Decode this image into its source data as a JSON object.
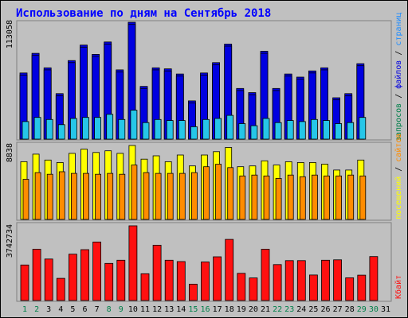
{
  "title": "Использование по дням на Сентябрь 2018",
  "colors": {
    "frame_bg": "#ffffff",
    "panel_bg": "#c0c0c0",
    "title": "#0000ff",
    "hits": "#0000e0",
    "files": "#26c6e8",
    "pages": "#1e8cff",
    "sites": "#ff8c00",
    "visits": "#ffff00",
    "kbytes": "#ff1010",
    "weekday": "#000000",
    "weekend": "#00804a"
  },
  "legend_top": [
    {
      "text": "запросов",
      "color": "#00804a"
    },
    {
      "text": " / ",
      "color": "#000000"
    },
    {
      "text": "файлов",
      "color": "#0000e0"
    },
    {
      "text": " / ",
      "color": "#000000"
    },
    {
      "text": "страниц",
      "color": "#1e8cff"
    }
  ],
  "legend_mid": [
    {
      "text": "посещений",
      "color": "#ffff00"
    },
    {
      "text": " / ",
      "color": "#000000"
    },
    {
      "text": "сайтов",
      "color": "#ff8c00"
    }
  ],
  "legend_bottom": [
    {
      "text": "Кбайт",
      "color": "#ff1010"
    }
  ],
  "chart_data": [
    {
      "type": "bar",
      "panel": "top",
      "ymax_label": "113058",
      "ylim": [
        0,
        113058
      ],
      "categories": [
        "1",
        "2",
        "3",
        "4",
        "5",
        "6",
        "7",
        "8",
        "9",
        "10",
        "11",
        "12",
        "13",
        "14",
        "15",
        "16",
        "17",
        "18",
        "19",
        "20",
        "21",
        "22",
        "23",
        "24",
        "25",
        "26",
        "27",
        "28",
        "29",
        "30",
        "31"
      ],
      "series": [
        {
          "name": "запросов",
          "values": [
            64000,
            83000,
            69000,
            44000,
            76000,
            91000,
            82000,
            94000,
            67000,
            113058,
            51000,
            69000,
            68000,
            63000,
            37000,
            64000,
            74000,
            92000,
            49000,
            45000,
            85000,
            49000,
            63000,
            60000,
            66000,
            69000,
            40000,
            44000,
            73000,
            0,
            0
          ]
        },
        {
          "name": "файлов",
          "values": [
            62000,
            81000,
            67000,
            42000,
            74000,
            89000,
            80000,
            92000,
            65000,
            111000,
            49000,
            67000,
            66000,
            61000,
            35000,
            62000,
            72000,
            90000,
            47000,
            43000,
            83000,
            47000,
            61000,
            58000,
            64000,
            67000,
            38000,
            42000,
            71000,
            0,
            0
          ]
        },
        {
          "name": "страниц",
          "values": [
            17000,
            21000,
            19000,
            14000,
            20000,
            21000,
            21000,
            24000,
            19000,
            28000,
            16000,
            19000,
            18000,
            18000,
            12000,
            19000,
            20000,
            23000,
            15000,
            13000,
            20000,
            16000,
            18000,
            17000,
            19000,
            18000,
            15000,
            16000,
            21000,
            0,
            0
          ]
        }
      ]
    },
    {
      "type": "bar",
      "panel": "middle",
      "ymax_label": "8838",
      "ylim": [
        0,
        8838
      ],
      "categories": [
        "1",
        "2",
        "3",
        "4",
        "5",
        "6",
        "7",
        "8",
        "9",
        "10",
        "11",
        "12",
        "13",
        "14",
        "15",
        "16",
        "17",
        "18",
        "19",
        "20",
        "21",
        "22",
        "23",
        "24",
        "25",
        "26",
        "27",
        "28",
        "29",
        "30",
        "31"
      ],
      "series": [
        {
          "name": "посещений",
          "values": [
            6900,
            7800,
            7100,
            6800,
            7900,
            8400,
            8000,
            8200,
            7900,
            8838,
            7200,
            7600,
            6900,
            7700,
            6400,
            7700,
            8100,
            8600,
            6300,
            6400,
            7000,
            6500,
            6900,
            6800,
            6800,
            6600,
            5900,
            5900,
            7100,
            0,
            0
          ]
        },
        {
          "name": "сайтов",
          "values": [
            4800,
            5600,
            5400,
            5700,
            5500,
            5500,
            5400,
            5500,
            5400,
            6500,
            5600,
            5500,
            5500,
            5500,
            5600,
            6300,
            6600,
            6200,
            5200,
            5300,
            5200,
            4900,
            5300,
            5100,
            5300,
            5200,
            5200,
            5300,
            5200,
            0,
            0
          ]
        }
      ]
    },
    {
      "type": "bar",
      "panel": "bottom",
      "ymax_label": "3742734",
      "ylim": [
        0,
        3742734
      ],
      "categories": [
        "1",
        "2",
        "3",
        "4",
        "5",
        "6",
        "7",
        "8",
        "9",
        "10",
        "11",
        "12",
        "13",
        "14",
        "15",
        "16",
        "17",
        "18",
        "19",
        "20",
        "21",
        "22",
        "23",
        "24",
        "25",
        "26",
        "27",
        "28",
        "29",
        "30",
        "31"
      ],
      "series": [
        {
          "name": "Кбайт",
          "values": [
            1780000,
            2570000,
            2080000,
            1110000,
            2320000,
            2550000,
            2930000,
            1860000,
            2020000,
            3742734,
            1340000,
            2770000,
            2020000,
            1950000,
            820000,
            1930000,
            2190000,
            3060000,
            1360000,
            1130000,
            2570000,
            1800000,
            2000000,
            2000000,
            1280000,
            2020000,
            2040000,
            1140000,
            1270000,
            2200000,
            0
          ]
        }
      ]
    }
  ]
}
